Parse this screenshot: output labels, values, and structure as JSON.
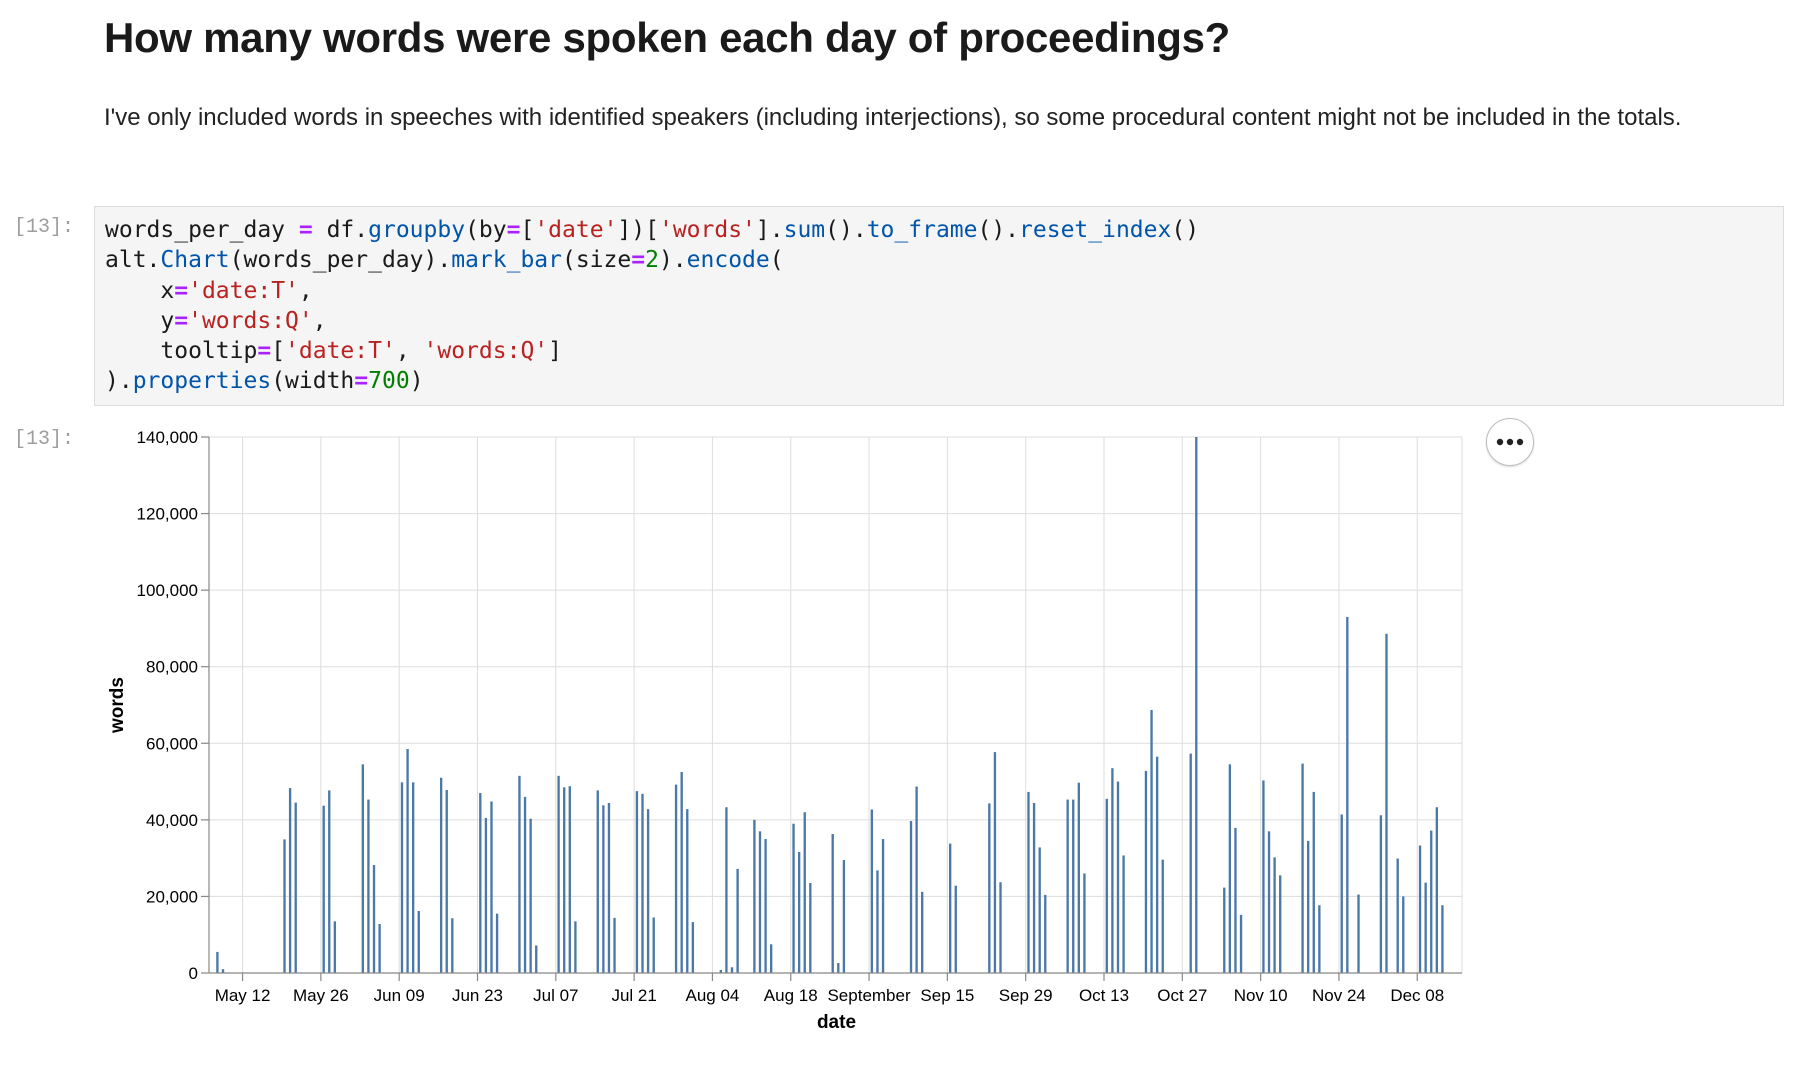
{
  "heading": "How many words were spoken each day of proceedings?",
  "paragraph": "I've only included words in speeches with identified speakers (including interjections), so some procedural content might not be included in the totals.",
  "cells": {
    "input_prompt": "[13]:",
    "output_prompt": "[13]:",
    "code_lines": [
      [
        {
          "t": "words_per_day ",
          "c": ""
        },
        {
          "t": "=",
          "c": "op"
        },
        {
          "t": " df.",
          "c": ""
        },
        {
          "t": "groupby",
          "c": "fn"
        },
        {
          "t": "(by",
          "c": ""
        },
        {
          "t": "=",
          "c": "op"
        },
        {
          "t": "[",
          "c": ""
        },
        {
          "t": "'date'",
          "c": "str"
        },
        {
          "t": "])[",
          "c": ""
        },
        {
          "t": "'words'",
          "c": "str"
        },
        {
          "t": "].",
          "c": ""
        },
        {
          "t": "sum",
          "c": "fn"
        },
        {
          "t": "().",
          "c": ""
        },
        {
          "t": "to_frame",
          "c": "fn"
        },
        {
          "t": "().",
          "c": ""
        },
        {
          "t": "reset_index",
          "c": "fn"
        },
        {
          "t": "()",
          "c": ""
        }
      ],
      [
        {
          "t": "alt.",
          "c": ""
        },
        {
          "t": "Chart",
          "c": "fn"
        },
        {
          "t": "(words_per_day).",
          "c": ""
        },
        {
          "t": "mark_bar",
          "c": "fn"
        },
        {
          "t": "(size",
          "c": ""
        },
        {
          "t": "=",
          "c": "op"
        },
        {
          "t": "2",
          "c": "num"
        },
        {
          "t": ").",
          "c": ""
        },
        {
          "t": "encode",
          "c": "fn"
        },
        {
          "t": "(",
          "c": ""
        }
      ],
      [
        {
          "t": "    x",
          "c": ""
        },
        {
          "t": "=",
          "c": "op"
        },
        {
          "t": "'date:T'",
          "c": "str"
        },
        {
          "t": ",",
          "c": ""
        }
      ],
      [
        {
          "t": "    y",
          "c": ""
        },
        {
          "t": "=",
          "c": "op"
        },
        {
          "t": "'words:Q'",
          "c": "str"
        },
        {
          "t": ",",
          "c": ""
        }
      ],
      [
        {
          "t": "    tooltip",
          "c": ""
        },
        {
          "t": "=",
          "c": "op"
        },
        {
          "t": "[",
          "c": ""
        },
        {
          "t": "'date:T'",
          "c": "str"
        },
        {
          "t": ", ",
          "c": ""
        },
        {
          "t": "'words:Q'",
          "c": "str"
        },
        {
          "t": "]",
          "c": ""
        }
      ],
      [
        {
          "t": ").",
          "c": ""
        },
        {
          "t": "properties",
          "c": "fn"
        },
        {
          "t": "(width",
          "c": ""
        },
        {
          "t": "=",
          "c": "op"
        },
        {
          "t": "700",
          "c": "num"
        },
        {
          "t": ")",
          "c": ""
        }
      ]
    ]
  },
  "actions_icon": "more-horizontal-icon",
  "colors": {
    "bar": "#4c78a8",
    "grid": "#dddddd",
    "axis": "#888888"
  },
  "chart_data": {
    "type": "bar",
    "xlabel": "date",
    "ylabel": "words",
    "ylim": [
      0,
      140000
    ],
    "yticks": [
      0,
      20000,
      40000,
      60000,
      80000,
      100000,
      120000,
      140000
    ],
    "ytick_labels": [
      "0",
      "20,000",
      "40,000",
      "60,000",
      "80,000",
      "100,000",
      "120,000",
      "140,000"
    ],
    "xlim": [
      "2020-05-06",
      "2020-12-16"
    ],
    "xticks": [
      "2020-05-12",
      "2020-05-26",
      "2020-06-09",
      "2020-06-23",
      "2020-07-07",
      "2020-07-21",
      "2020-08-04",
      "2020-08-18",
      "2020-09-01",
      "2020-09-15",
      "2020-09-29",
      "2020-10-13",
      "2020-10-27",
      "2020-11-10",
      "2020-11-24",
      "2020-12-08"
    ],
    "xtick_labels": [
      "May 12",
      "May 26",
      "Jun 09",
      "Jun 23",
      "Jul 07",
      "Jul 21",
      "Aug 04",
      "Aug 18",
      "September",
      "Sep 15",
      "Sep 29",
      "Oct 13",
      "Oct 27",
      "Nov 10",
      "Nov 24",
      "Dec 08"
    ],
    "grid": true,
    "bars": [
      [
        "2020-05-07",
        5500
      ],
      [
        "2020-05-08",
        1000
      ],
      [
        "2020-05-19",
        34900
      ],
      [
        "2020-05-20",
        48300
      ],
      [
        "2020-05-21",
        44500
      ],
      [
        "2020-05-26",
        43700
      ],
      [
        "2020-05-27",
        47700
      ],
      [
        "2020-05-28",
        13500
      ],
      [
        "2020-06-02",
        54500
      ],
      [
        "2020-06-03",
        45300
      ],
      [
        "2020-06-04",
        28200
      ],
      [
        "2020-06-05",
        12800
      ],
      [
        "2020-06-09",
        49800
      ],
      [
        "2020-06-10",
        58500
      ],
      [
        "2020-06-11",
        49800
      ],
      [
        "2020-06-12",
        16200
      ],
      [
        "2020-06-16",
        51000
      ],
      [
        "2020-06-17",
        47800
      ],
      [
        "2020-06-18",
        14300
      ],
      [
        "2020-06-23",
        47000
      ],
      [
        "2020-06-24",
        40500
      ],
      [
        "2020-06-25",
        44800
      ],
      [
        "2020-06-26",
        15500
      ],
      [
        "2020-06-30",
        51500
      ],
      [
        "2020-07-01",
        46000
      ],
      [
        "2020-07-02",
        40300
      ],
      [
        "2020-07-03",
        7200
      ],
      [
        "2020-07-07",
        51500
      ],
      [
        "2020-07-08",
        48500
      ],
      [
        "2020-07-09",
        48800
      ],
      [
        "2020-07-10",
        13500
      ],
      [
        "2020-07-14",
        47700
      ],
      [
        "2020-07-15",
        43800
      ],
      [
        "2020-07-16",
        44400
      ],
      [
        "2020-07-17",
        14400
      ],
      [
        "2020-07-21",
        47500
      ],
      [
        "2020-07-22",
        46800
      ],
      [
        "2020-07-23",
        42800
      ],
      [
        "2020-07-24",
        14500
      ],
      [
        "2020-07-28",
        49200
      ],
      [
        "2020-07-29",
        52500
      ],
      [
        "2020-07-30",
        42800
      ],
      [
        "2020-07-31",
        13300
      ],
      [
        "2020-08-05",
        800
      ],
      [
        "2020-08-06",
        43300
      ],
      [
        "2020-08-07",
        1500
      ],
      [
        "2020-08-08",
        27200
      ],
      [
        "2020-08-11",
        40000
      ],
      [
        "2020-08-12",
        37000
      ],
      [
        "2020-08-13",
        35000
      ],
      [
        "2020-08-14",
        7500
      ],
      [
        "2020-08-18",
        39000
      ],
      [
        "2020-08-19",
        31600
      ],
      [
        "2020-08-20",
        42000
      ],
      [
        "2020-08-21",
        23500
      ],
      [
        "2020-08-25",
        36300
      ],
      [
        "2020-08-26",
        2600
      ],
      [
        "2020-08-27",
        29500
      ],
      [
        "2020-09-01",
        42700
      ],
      [
        "2020-09-02",
        26800
      ],
      [
        "2020-09-03",
        35000
      ],
      [
        "2020-09-08",
        39700
      ],
      [
        "2020-09-09",
        48700
      ],
      [
        "2020-09-10",
        21200
      ],
      [
        "2020-09-15",
        33800
      ],
      [
        "2020-09-16",
        22800
      ],
      [
        "2020-09-22",
        44300
      ],
      [
        "2020-09-23",
        57700
      ],
      [
        "2020-09-24",
        23700
      ],
      [
        "2020-09-29",
        47300
      ],
      [
        "2020-09-30",
        44400
      ],
      [
        "2020-10-01",
        32800
      ],
      [
        "2020-10-02",
        20400
      ],
      [
        "2020-10-06",
        45300
      ],
      [
        "2020-10-07",
        45300
      ],
      [
        "2020-10-08",
        49700
      ],
      [
        "2020-10-09",
        26000
      ],
      [
        "2020-10-13",
        45500
      ],
      [
        "2020-10-14",
        53500
      ],
      [
        "2020-10-15",
        50000
      ],
      [
        "2020-10-16",
        30700
      ],
      [
        "2020-10-20",
        52800
      ],
      [
        "2020-10-21",
        68700
      ],
      [
        "2020-10-22",
        56500
      ],
      [
        "2020-10-23",
        29600
      ],
      [
        "2020-10-28",
        57300
      ],
      [
        "2020-10-29",
        140000
      ],
      [
        "2020-11-03",
        22300
      ],
      [
        "2020-11-04",
        54500
      ],
      [
        "2020-11-05",
        37900
      ],
      [
        "2020-11-06",
        15200
      ],
      [
        "2020-11-10",
        50300
      ],
      [
        "2020-11-11",
        37000
      ],
      [
        "2020-11-12",
        30200
      ],
      [
        "2020-11-13",
        25500
      ],
      [
        "2020-11-17",
        54700
      ],
      [
        "2020-11-18",
        34500
      ],
      [
        "2020-11-19",
        47300
      ],
      [
        "2020-11-20",
        17700
      ],
      [
        "2020-11-24",
        41400
      ],
      [
        "2020-11-25",
        93000
      ],
      [
        "2020-11-27",
        20500
      ],
      [
        "2020-12-01",
        41200
      ],
      [
        "2020-12-02",
        88600
      ],
      [
        "2020-12-04",
        29900
      ],
      [
        "2020-12-05",
        20000
      ],
      [
        "2020-12-08",
        33300
      ],
      [
        "2020-12-09",
        23600
      ],
      [
        "2020-12-10",
        37200
      ],
      [
        "2020-12-11",
        43300
      ],
      [
        "2020-12-12",
        17700
      ]
    ]
  }
}
